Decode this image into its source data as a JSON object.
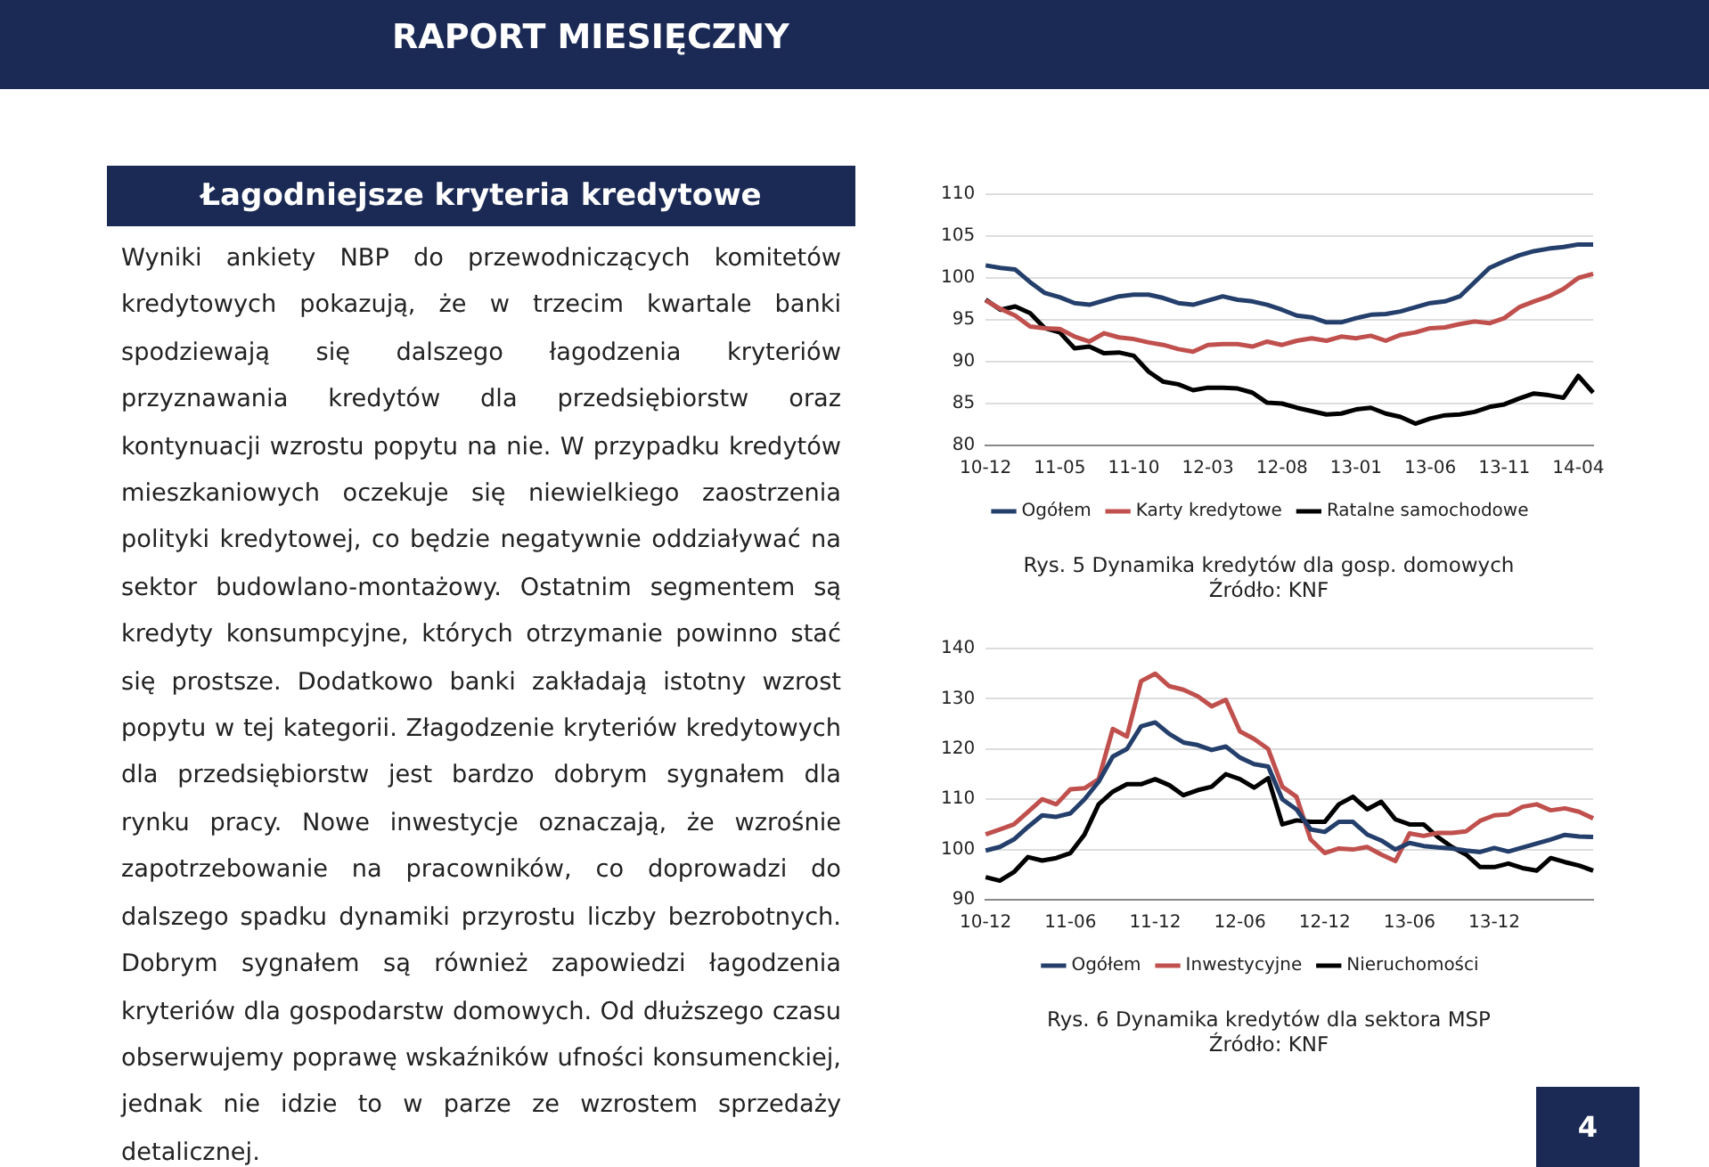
{
  "chart_data": [
    {
      "type": "other",
      "title": "Łagodniejsze kryteria kredytowe",
      "annotations": [
        "RAPORT MIESIĘCZNY",
        "Wyniki ankiety NBP do przewodniczących komitetów kredytowych pokazują, że w trzecim kwartale banki spodziewają się dalszego łagodzenia kryteriów przyznawania kredytów dla przedsiębiorstw oraz kontynuacji wzrostu popytu na nie. W przypadku kredytów mieszkaniowych oczekuje się niewielkiego zaostrzenia polityki kredytowej, co będzie negatywnie oddziaływać na sektor budowlano-montażowy. Ostatnim segmentem są kredyty konsumpcyjne, których otrzymanie powinno stać się prostsze. Dodatkowo banki zakładają istotny wzrost popytu w tej kategorii. Złagodzenie kryteriów kredytowych dla przedsiębiorstw jest bardzo dobrym sygnałem dla rynku pracy. Nowe inwestycje oznaczają, że wzrośnie zapotrzebowanie na pracowników, co doprowadzi do dalszego spadku dynamiki przyrostu liczby bezrobotnych. Dobrym sygnałem są również zapowiedzi łagodzenia kryteriów dla gospodarstw domowych. Od dłuższego czasu obserwujemy poprawę wskaźników ufności konsumenckiej, jednak nie idzie to w parze ze wzrostem sprzedaży detalicznej.",
        "4"
      ]
    },
    {
      "type": "line",
      "title": "Rys. 5 Dynamika kredytów dla gosp. domowych",
      "annotations": [
        "Źródło: KNF"
      ],
      "categories": [
        "10-12",
        null,
        null,
        null,
        null,
        "11-05",
        null,
        null,
        null,
        null,
        "11-10",
        null,
        null,
        null,
        null,
        "12-03",
        null,
        null,
        null,
        null,
        "12-08",
        null,
        null,
        null,
        null,
        "13-01",
        null,
        null,
        null,
        null,
        "13-06",
        null,
        null,
        null,
        null,
        "13-11",
        null,
        null,
        null,
        null,
        "14-04",
        null
      ],
      "ylim": [
        80,
        110
      ],
      "yticks": [
        80,
        85,
        90,
        95,
        100,
        105,
        110
      ],
      "grid": "y",
      "legend": "bottom",
      "series": [
        {
          "name": "Ogółem",
          "color": "#243f6b",
          "values": [
            101.5,
            101.2,
            101.0,
            99.5,
            98.2,
            97.7,
            97.0,
            96.8,
            97.3,
            97.8,
            98.0,
            98.0,
            97.6,
            97.0,
            96.8,
            97.3,
            97.8,
            97.4,
            97.2,
            96.8,
            96.2,
            95.5,
            95.3,
            94.7,
            94.7,
            95.2,
            95.6,
            95.7,
            96.0,
            96.5,
            97.0,
            97.2,
            97.8,
            99.5,
            101.2,
            102.0,
            102.7,
            103.2,
            103.5,
            103.7,
            104.0,
            104.0
          ]
        },
        {
          "name": "Karty kredytowe",
          "color": "#c0504d",
          "values": [
            97.3,
            96.3,
            95.5,
            94.2,
            94.0,
            93.9,
            93.0,
            92.4,
            93.4,
            92.9,
            92.7,
            92.3,
            92.0,
            91.5,
            91.2,
            92.0,
            92.1,
            92.1,
            91.8,
            92.4,
            92.0,
            92.5,
            92.8,
            92.5,
            93.0,
            92.8,
            93.1,
            92.5,
            93.2,
            93.5,
            94.0,
            94.1,
            94.5,
            94.8,
            94.6,
            95.2,
            96.5,
            97.2,
            97.8,
            98.7,
            100.0,
            100.5
          ]
        },
        {
          "name": "Ratalne samochodowe",
          "color": "#000000",
          "values": [
            97.4,
            96.2,
            96.6,
            95.8,
            94.0,
            93.5,
            91.6,
            91.8,
            91.0,
            91.1,
            90.7,
            88.8,
            87.6,
            87.3,
            86.6,
            86.9,
            86.9,
            86.8,
            86.3,
            85.1,
            85.0,
            84.5,
            84.1,
            83.7,
            83.8,
            84.3,
            84.5,
            83.8,
            83.4,
            82.6,
            83.2,
            83.6,
            83.7,
            84.0,
            84.6,
            84.9,
            85.6,
            86.2,
            86.0,
            85.7,
            88.3,
            86.3
          ]
        }
      ]
    },
    {
      "type": "line",
      "title": "Rys. 6 Dynamika kredytów dla sektora MSP",
      "annotations": [
        "Źródło: KNF"
      ],
      "categories": [
        "10-12",
        null,
        null,
        null,
        null,
        null,
        "11-06",
        null,
        null,
        null,
        null,
        null,
        "11-12",
        null,
        null,
        null,
        null,
        null,
        "12-06",
        null,
        null,
        null,
        null,
        null,
        "12-12",
        null,
        null,
        null,
        null,
        null,
        "13-06",
        null,
        null,
        null,
        null,
        null,
        "13-12",
        null,
        null,
        null,
        null,
        null,
        null,
        null
      ],
      "ylim": [
        90,
        140
      ],
      "yticks": [
        90,
        100,
        110,
        120,
        130,
        140
      ],
      "grid": "y",
      "legend": "bottom",
      "series": [
        {
          "name": "Ogółem",
          "color": "#243f6b",
          "values": [
            99.8,
            100.5,
            102,
            104.5,
            106.8,
            106.5,
            107.2,
            110,
            113.5,
            118.5,
            120,
            124.5,
            125.3,
            123,
            121.3,
            120.8,
            119.8,
            120.5,
            118.3,
            117,
            116.5,
            110,
            108,
            104,
            103.5,
            105.5,
            105.5,
            103,
            101.8,
            100,
            101.3,
            100.7,
            100.4,
            100.2,
            99.8,
            99.5,
            100.3,
            99.6,
            100.4,
            101.2,
            102,
            102.9,
            102.6,
            102.5
          ]
        },
        {
          "name": "Inwestycyjne",
          "color": "#c0504d",
          "values": [
            103,
            104,
            105,
            107.5,
            110,
            109,
            112,
            112.2,
            114,
            124,
            122.5,
            133.5,
            135,
            132.5,
            131.8,
            130.5,
            128.5,
            129.8,
            123.5,
            122,
            120,
            112.5,
            110.5,
            102,
            99.3,
            100.2,
            100,
            100.5,
            99,
            97.7,
            103.2,
            102.7,
            103.3,
            103.3,
            103.6,
            105.7,
            106.8,
            107,
            108.5,
            109,
            107.8,
            108.2,
            107.5,
            106.2
          ]
        },
        {
          "name": "Nieruchomości",
          "color": "#000000",
          "values": [
            94.5,
            93.8,
            95.5,
            98.5,
            97.8,
            98.3,
            99.3,
            103,
            109,
            111.5,
            113,
            113,
            114,
            112.8,
            110.8,
            111.8,
            112.5,
            115,
            114,
            112.3,
            114.2,
            105,
            105.8,
            105.5,
            105.5,
            109,
            110.5,
            108,
            109.5,
            106,
            105,
            105,
            102.5,
            100.5,
            99,
            96.5,
            96.5,
            97.2,
            96.3,
            95.8,
            98.3,
            97.5,
            96.8,
            95.8
          ]
        }
      ]
    }
  ]
}
